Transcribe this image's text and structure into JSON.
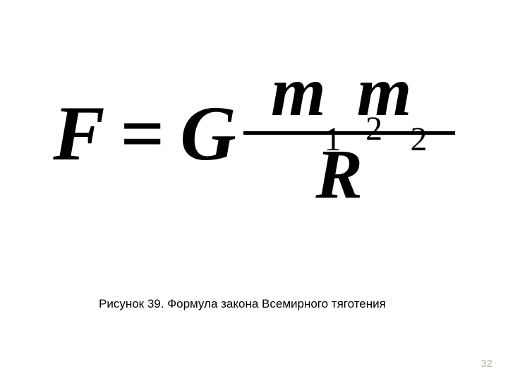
{
  "colors": {
    "background": "#ffffff",
    "text": "#000000",
    "pagenum": "#b9b2a8",
    "fraction_bar": "#000000"
  },
  "typography": {
    "formula_font_family": "Times New Roman",
    "formula_main_size_pt": 82,
    "formula_subsup_size_pt": 36,
    "caption_font_family": "Arial",
    "caption_size_pt": 13,
    "pagenum_size_pt": 11
  },
  "formula": {
    "lhs_symbol": "F",
    "equals": "=",
    "constant": "G",
    "numerator": {
      "term1": {
        "base": "m",
        "subscript": "1"
      },
      "term2": {
        "base": "m",
        "subscript": "2"
      }
    },
    "denominator": {
      "base": "R",
      "superscript": "2"
    }
  },
  "caption": "Рисунок 39. Формула закона Всемирного тяготения",
  "page_number": "32"
}
